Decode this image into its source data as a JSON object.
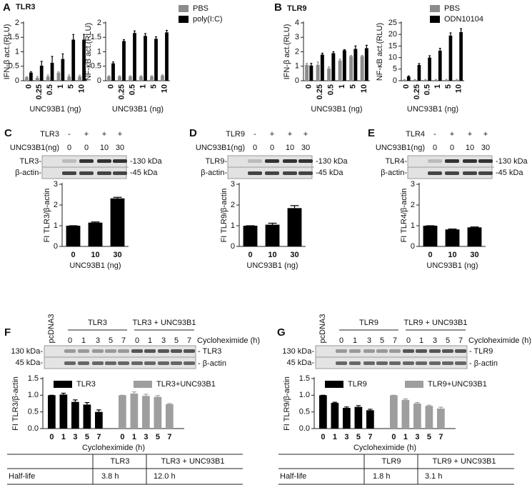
{
  "panels": [
    "A",
    "B",
    "C",
    "D",
    "E",
    "F",
    "G"
  ],
  "chart_data": [
    {
      "type": "bar",
      "title": "TLR3",
      "ylabel": "IFN-β act.(RLU)",
      "xlabel": "UNC93B1 (ng)",
      "categories": [
        "0",
        "0.25",
        "0.5",
        "1",
        "5",
        "10"
      ],
      "series": [
        {
          "color": "#8c8c8c",
          "values": [
            0.12,
            0.1,
            0.15,
            0.28,
            0.15,
            0.15
          ],
          "errors": [
            0.02,
            0.05,
            0.05,
            0.03,
            0.05,
            0.04
          ]
        },
        {
          "color": "#000000",
          "values": [
            0.28,
            0.52,
            0.62,
            0.75,
            1.42,
            1.42
          ],
          "errors": [
            0.03,
            0.15,
            0.22,
            0.18,
            0.18,
            0.18
          ]
        }
      ],
      "ylim": [
        0,
        2
      ],
      "yticks": [
        0,
        0.5,
        1,
        1.5,
        2
      ]
    },
    {
      "type": "bar",
      "ylabel": "NF-κB act.(RLU)",
      "xlabel": "UNC93B1 (ng)",
      "categories": [
        "0",
        "0.25",
        "0.5",
        "1",
        "5",
        "10"
      ],
      "series": [
        {
          "name": "PBS",
          "color": "#8c8c8c",
          "values": [
            0.15,
            0.15,
            0.15,
            0.15,
            0.15,
            0.18
          ],
          "errors": [
            0.02,
            0.02,
            0.02,
            0.02,
            0.02,
            0.02
          ]
        },
        {
          "name": "poly(I:C)",
          "color": "#000000",
          "values": [
            0.6,
            1.37,
            1.65,
            1.55,
            1.45,
            1.67
          ],
          "errors": [
            0.05,
            0.05,
            0.07,
            0.08,
            0.07,
            0.07
          ]
        }
      ],
      "ylim": [
        0,
        2
      ],
      "yticks": [
        0,
        0.5,
        1,
        1.5,
        2
      ]
    },
    {
      "type": "bar",
      "title": "TLR9",
      "ylabel": "IFN-β act.(RLU)",
      "xlabel": "UNC93B1 (ng)",
      "categories": [
        "0",
        "0.25",
        "0.5",
        "1",
        "5",
        "10"
      ],
      "series": [
        {
          "color": "#8c8c8c",
          "values": [
            1.1,
            1.1,
            0.85,
            1.4,
            1.7,
            1.7
          ],
          "errors": [
            0.1,
            0.2,
            0.1,
            0.1,
            0.05,
            0.05
          ]
        },
        {
          "color": "#000000",
          "values": [
            1.05,
            1.8,
            1.9,
            2.1,
            2.2,
            2.25
          ],
          "errors": [
            0.15,
            0.1,
            0.1,
            0.05,
            0.2,
            0.2
          ]
        }
      ],
      "ylim": [
        0,
        4
      ],
      "yticks": [
        0,
        1,
        2,
        3,
        4
      ]
    },
    {
      "type": "bar",
      "ylabel": "NF-κB act.(RLU)",
      "xlabel": "UNC93B1 (ng)",
      "categories": [
        "0",
        "0.25",
        "0.5",
        "1",
        "5",
        "10"
      ],
      "series": [
        {
          "name": "PBS",
          "color": "#8c8c8c",
          "values": [
            0.3,
            0.3,
            0.3,
            0.3,
            0.3,
            0.3
          ],
          "errors": [
            0.2,
            0.2,
            0.2,
            0.2,
            0.2,
            0.2
          ]
        },
        {
          "name": "ODN10104",
          "color": "#000000",
          "values": [
            1.8,
            6.8,
            10,
            13,
            19.5,
            21
          ],
          "errors": [
            0.3,
            0.6,
            0.8,
            1,
            1.2,
            1.5
          ]
        }
      ],
      "ylim": [
        0,
        25
      ],
      "yticks": [
        0,
        5,
        10,
        15,
        20,
        25
      ]
    },
    {
      "type": "bar",
      "ylabel": "FI TLR3/β-actin",
      "xlabel": "UNC93B1 (ng)",
      "categories": [
        "0",
        "10",
        "30"
      ],
      "color": "#000000",
      "values": [
        1,
        1.15,
        2.32
      ],
      "errors": [
        0,
        0.03,
        0.05
      ],
      "ylim": [
        0,
        3
      ],
      "yticks": [
        0,
        1,
        2,
        3
      ]
    },
    {
      "type": "bar",
      "ylabel": "FI TLR9/β-actin",
      "xlabel": "UNC93B1 (ng)",
      "categories": [
        "0",
        "10",
        "30"
      ],
      "color": "#000000",
      "values": [
        1,
        1.05,
        1.85
      ],
      "errors": [
        0,
        0.07,
        0.12
      ],
      "ylim": [
        0,
        3
      ],
      "yticks": [
        0,
        1,
        2,
        3
      ]
    },
    {
      "type": "bar",
      "ylabel": "FI TLR4/β-actin",
      "xlabel": "UNC93B1 (ng)",
      "categories": [
        "0",
        "10",
        "30"
      ],
      "color": "#000000",
      "values": [
        1,
        0.82,
        0.92
      ],
      "errors": [
        0,
        0.02,
        0.02
      ],
      "ylim": [
        0,
        3
      ],
      "yticks": [
        0,
        1,
        2,
        3
      ]
    },
    {
      "type": "bar",
      "ylabel": "FI TLR3/β-actin",
      "xlabel": "Cycloheximide (h)",
      "categories": [
        "0",
        "1",
        "3",
        "5",
        "7"
      ],
      "series": [
        {
          "name": "TLR3",
          "color": "#000000",
          "values": [
            1,
            1.02,
            0.8,
            0.72,
            0.5
          ],
          "errors": [
            0,
            0.04,
            0.06,
            0.06,
            0.06
          ]
        },
        {
          "name": "TLR3+UNC93B1",
          "color": "#9e9e9e",
          "values": [
            1,
            1.05,
            0.98,
            0.95,
            0.73
          ],
          "errors": [
            0,
            0.05,
            0.05,
            0.04,
            0.02
          ]
        }
      ],
      "ylim": [
        0,
        1.5
      ],
      "yticks": [
        {
          "value": 0,
          "label": "0.0"
        },
        0.5,
        {
          "value": 1,
          "label": "1.0"
        },
        1.5
      ]
    },
    {
      "type": "bar",
      "ylabel": "FI TLR9/β-actin",
      "xlabel": "Cycloheximide (h)",
      "categories": [
        "0",
        "1",
        "3",
        "5",
        "7"
      ],
      "series": [
        {
          "name": "TLR9",
          "color": "#000000",
          "values": [
            1,
            0.77,
            0.62,
            0.65,
            0.55
          ],
          "errors": [
            0,
            0.02,
            0.03,
            0.04,
            0.03
          ]
        },
        {
          "name": "TLR9+UNC93B1",
          "color": "#9e9e9e",
          "values": [
            1,
            0.86,
            0.75,
            0.68,
            0.6
          ],
          "errors": [
            0,
            0.03,
            0.03,
            0.02,
            0.04
          ]
        }
      ],
      "ylim": [
        0,
        1.5
      ],
      "yticks": [
        {
          "value": 0,
          "label": "0.0"
        },
        0.5,
        {
          "value": 1,
          "label": "1.0"
        },
        1.5
      ]
    }
  ],
  "blots": [
    {
      "header": [
        {
          "label": "TLR3",
          "lanes": [
            "-",
            "+",
            "+",
            "+"
          ]
        },
        {
          "label": "UNC93B1(ng)",
          "lanes": [
            "0",
            "0",
            "10",
            "30"
          ]
        }
      ],
      "bands": [
        "TLR3-",
        "β-actin-"
      ],
      "markers": [
        "-130 kDa",
        "-45 kDa"
      ]
    },
    {
      "header": [
        {
          "label": "TLR9",
          "lanes": [
            "-",
            "+",
            "+",
            "+"
          ]
        },
        {
          "label": "UNC93B1(ng)",
          "lanes": [
            "0",
            "0",
            "10",
            "30"
          ]
        }
      ],
      "bands": [
        "TLR9-",
        "β-actin-"
      ],
      "markers": [
        "-130 kDa",
        "-45 kDa"
      ]
    },
    {
      "header": [
        {
          "label": "TLR4",
          "lanes": [
            "-",
            "+",
            "+",
            "+"
          ]
        },
        {
          "label": "UNC93B1(ng)",
          "lanes": [
            "0",
            "0",
            "10",
            "30"
          ]
        }
      ],
      "bands": [
        "TLR4-",
        "β-actin-"
      ],
      "markers": [
        "-130 kDa",
        "-45 kDa"
      ]
    }
  ],
  "time_blots": [
    {
      "control": "pcDNA3",
      "groups": [
        "TLR3",
        "TLR3 + UNC93B1"
      ],
      "lanes": [
        "0",
        "1",
        "3",
        "5",
        "7",
        "0",
        "1",
        "3",
        "5",
        "7"
      ],
      "time_label": "Cycloheximide (h)",
      "markers": [
        "130 kDa-",
        "45 kDa-"
      ],
      "bands": [
        "- TLR3",
        "- β-actin"
      ]
    },
    {
      "control": "pcDNA3",
      "groups": [
        "TLR9",
        "TLR9 + UNC93B1"
      ],
      "lanes": [
        "0",
        "1",
        "3",
        "5",
        "7",
        "0",
        "1",
        "3",
        "5",
        "7"
      ],
      "time_label": "Cycloheximide (h)",
      "markers": [
        "130 kDa-",
        "45 kDa-"
      ],
      "bands": [
        "- TLR9",
        "- β-actin"
      ]
    }
  ],
  "tables": [
    {
      "header": [
        "TLR3",
        "TLR3 + UNC93B1"
      ],
      "rows": [
        [
          "Half-life",
          "3.8 h",
          "12.0 h"
        ]
      ]
    },
    {
      "header": [
        "TLR9",
        "TLR9 + UNC93B1"
      ],
      "rows": [
        [
          "Half-life",
          "1.8 h",
          "3.1 h"
        ]
      ]
    }
  ]
}
